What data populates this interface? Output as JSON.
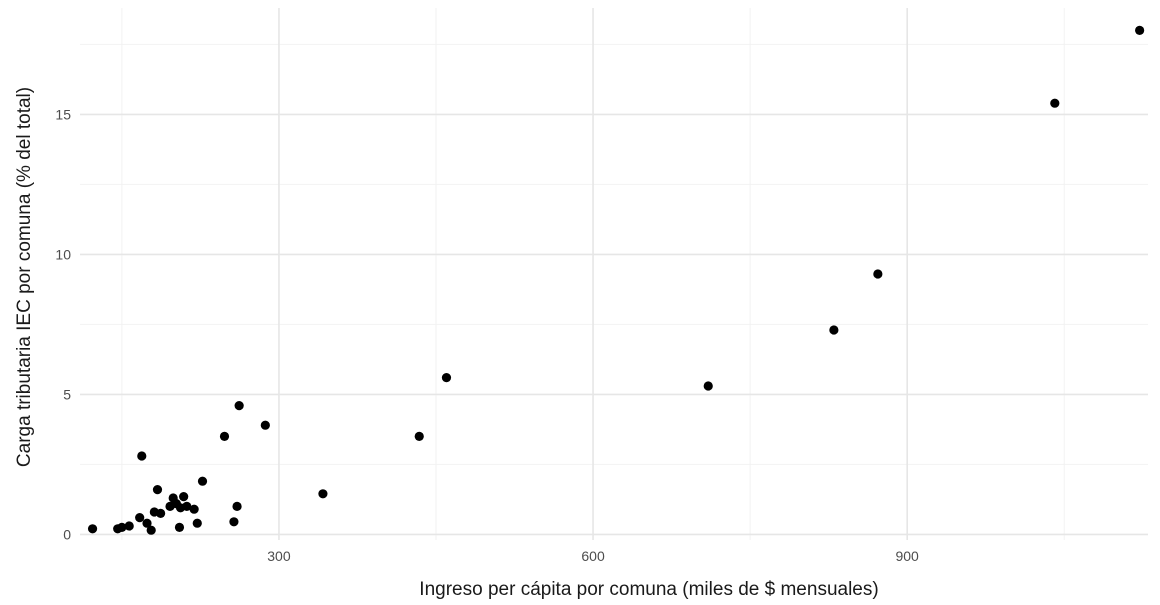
{
  "chart_data": {
    "type": "scatter",
    "xlabel": "Ingreso per cápita por comuna (miles de $ mensuales)",
    "ylabel": "Carga tributaria IEC por comuna (% del total)",
    "xlim": [
      110,
      1130
    ],
    "ylim": [
      -0.2,
      18.8
    ],
    "x_major_ticks": [
      300,
      600,
      900
    ],
    "x_minor_ticks": [
      150,
      450,
      750,
      1050
    ],
    "y_major_ticks": [
      0,
      5,
      10,
      15
    ],
    "y_minor_ticks": [
      2.5,
      7.5,
      12.5,
      17.5
    ],
    "x_tick_labels": [
      "300",
      "600",
      "900"
    ],
    "y_tick_labels": [
      "0",
      "5",
      "10",
      "15"
    ],
    "grid": true,
    "legend": "none",
    "point_color": "#000000",
    "points": [
      {
        "x": 122,
        "y": 0.2
      },
      {
        "x": 146,
        "y": 0.2
      },
      {
        "x": 150,
        "y": 0.25
      },
      {
        "x": 157,
        "y": 0.3
      },
      {
        "x": 167,
        "y": 0.6
      },
      {
        "x": 169,
        "y": 2.8
      },
      {
        "x": 174,
        "y": 0.4
      },
      {
        "x": 178,
        "y": 0.15
      },
      {
        "x": 181,
        "y": 0.8
      },
      {
        "x": 184,
        "y": 1.6
      },
      {
        "x": 187,
        "y": 0.75
      },
      {
        "x": 196,
        "y": 1.0
      },
      {
        "x": 199,
        "y": 1.3
      },
      {
        "x": 202,
        "y": 1.1
      },
      {
        "x": 205,
        "y": 0.25
      },
      {
        "x": 206,
        "y": 0.95
      },
      {
        "x": 209,
        "y": 1.35
      },
      {
        "x": 212,
        "y": 1.0
      },
      {
        "x": 219,
        "y": 0.9
      },
      {
        "x": 222,
        "y": 0.4
      },
      {
        "x": 227,
        "y": 1.9
      },
      {
        "x": 248,
        "y": 3.5
      },
      {
        "x": 257,
        "y": 0.45
      },
      {
        "x": 260,
        "y": 1.0
      },
      {
        "x": 262,
        "y": 4.6
      },
      {
        "x": 287,
        "y": 3.9
      },
      {
        "x": 342,
        "y": 1.45
      },
      {
        "x": 434,
        "y": 3.5
      },
      {
        "x": 460,
        "y": 5.6
      },
      {
        "x": 710,
        "y": 5.3
      },
      {
        "x": 830,
        "y": 7.3
      },
      {
        "x": 872,
        "y": 9.3
      },
      {
        "x": 1041,
        "y": 15.4
      },
      {
        "x": 1122,
        "y": 18.0
      }
    ]
  }
}
